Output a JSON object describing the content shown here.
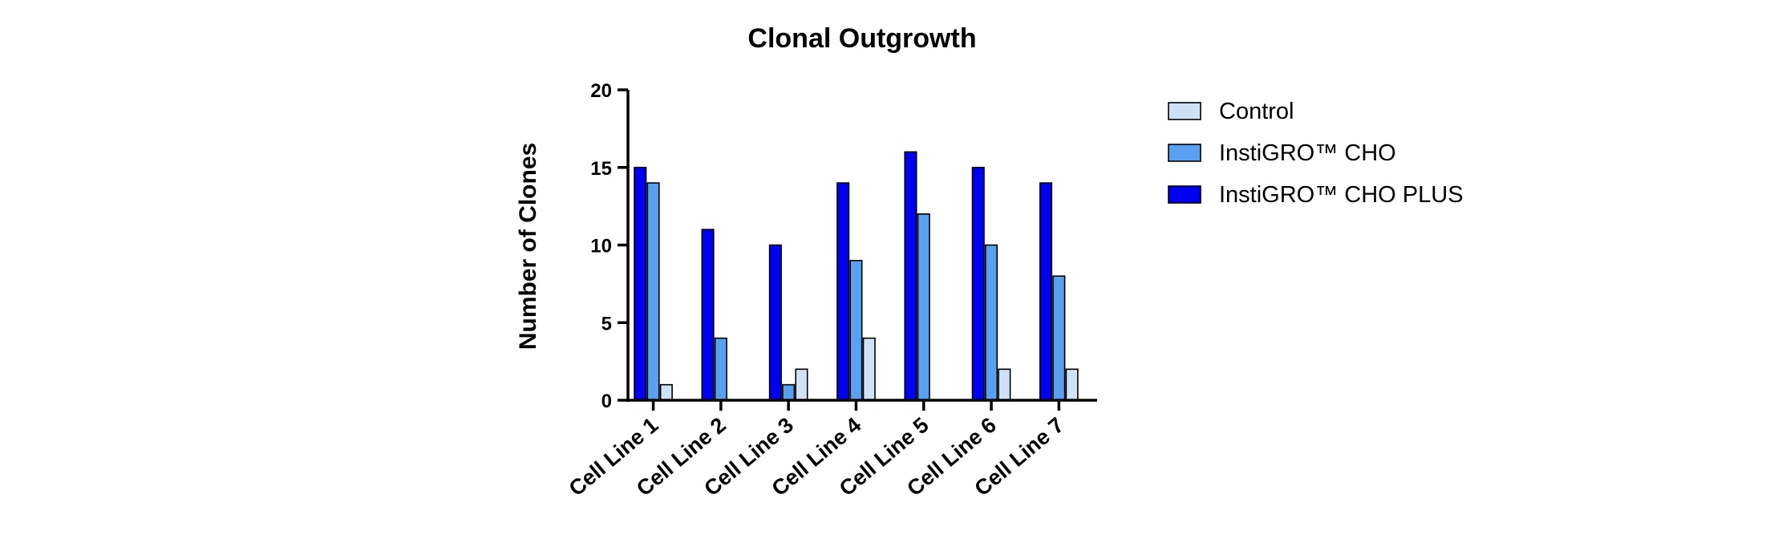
{
  "chart_data": {
    "type": "bar",
    "title": "Clonal Outgrowth",
    "xlabel": "",
    "ylabel": "Number of Clones",
    "ylim": [
      0,
      20
    ],
    "yticks": [
      0,
      5,
      10,
      15,
      20
    ],
    "categories": [
      "Cell Line 1",
      "Cell Line 2",
      "Cell Line 3",
      "Cell Line 4",
      "Cell Line 5",
      "Cell Line 6",
      "Cell Line 7"
    ],
    "series": [
      {
        "name": "InstiGRO™ CHO PLUS",
        "color": "#0000f0",
        "values": [
          15,
          11,
          10,
          14,
          16,
          15,
          14
        ]
      },
      {
        "name": "InstiGRO™ CHO",
        "color": "#5aa0f0",
        "values": [
          14,
          4,
          1,
          9,
          12,
          10,
          8
        ]
      },
      {
        "name": "Control",
        "color": "#cfe1f5",
        "values": [
          1,
          0,
          2,
          4,
          0,
          2,
          2
        ]
      }
    ],
    "legend": {
      "placement": "right",
      "order": [
        "Control",
        "InstiGRO™ CHO",
        "InstiGRO™ CHO PLUS"
      ]
    },
    "grid": false
  }
}
